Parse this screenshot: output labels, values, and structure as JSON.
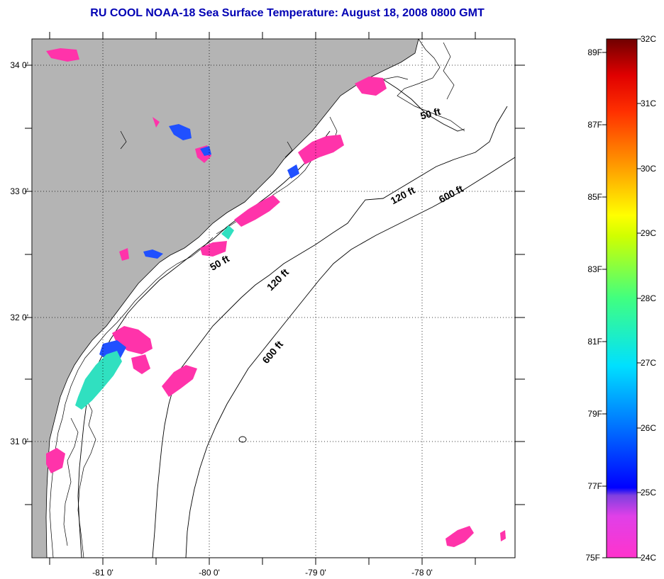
{
  "title": "RU COOL  NOAA-18  Sea Surface Temperature:  August 18, 2008 0800 GMT",
  "lat_labels": [
    "34 0'",
    "33 0'",
    "32 0'",
    "31 0'"
  ],
  "lon_labels": [
    "-81 0'",
    "-80 0'",
    "-79 0'",
    "-78 0'"
  ],
  "contour_labels": [
    "50 ft",
    "50 ft",
    "120 ft",
    "120 ft",
    "600 ft",
    "600 ft"
  ],
  "colorbar": {
    "celsius_labels": [
      "32C",
      "31C",
      "30C",
      "29C",
      "28C",
      "27C",
      "26C",
      "25C",
      "24C"
    ],
    "fahrenheit_labels": [
      "89F",
      "87F",
      "85F",
      "83F",
      "81F",
      "79F",
      "77F",
      "75F"
    ],
    "colors": [
      "#ff33cc",
      "#d040e0",
      "#0000ff",
      "#0070ff",
      "#00e0ff",
      "#40ff80",
      "#d0ff00",
      "#ffff00",
      "#ffa000",
      "#ff3000",
      "#e00000",
      "#700000"
    ]
  },
  "colors": {
    "land": "#b4b4b4",
    "title": "#0000b4",
    "sst_warm": "#ff33aa",
    "sst_mid": "#2050ff",
    "sst_cool": "#30e0c0"
  }
}
